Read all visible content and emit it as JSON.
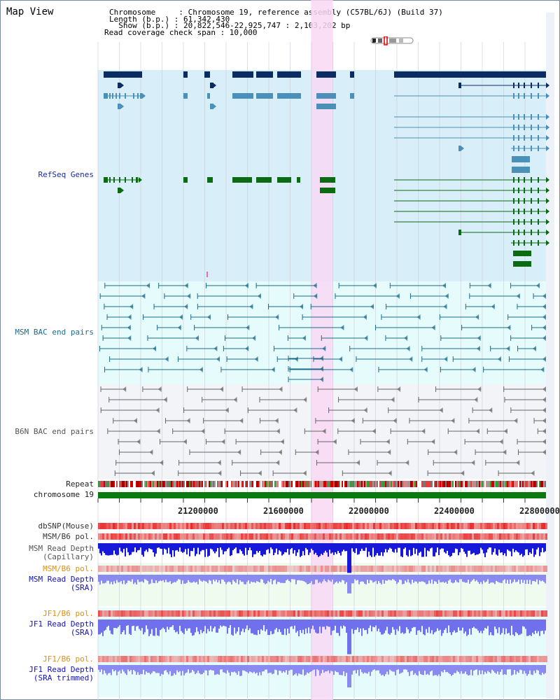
{
  "header": {
    "title": "Map View",
    "info_lines": [
      "Chromosome     : Chromosome 19, reference assembly (C57BL/6J) (Build 37)",
      "Length (b.p.) : 61,342,430",
      "  Show (b.p.) : 20,822,546-22,925,747 : 2,103,202 bp",
      "Read coverage check span : 10,000"
    ]
  },
  "tracks": {
    "refseq": {
      "label": "RefSeq Genes",
      "color_main": "#0b2c63",
      "color_mid": "#4a90b8",
      "color_green": "#0a6b12",
      "bg": "#d8eef8"
    },
    "msm_bac": {
      "label": "MSM BAC end pairs",
      "color": "#1c6b8a",
      "bg": "#e6fbfb"
    },
    "b6n_bac": {
      "label": "B6N BAC end pairs",
      "color": "#666666",
      "bg": "#f3f4f8"
    },
    "repeat": {
      "label": "Repeat"
    },
    "chromosome": {
      "label": "chromosome 19",
      "color": "#0a7a10"
    },
    "dbsnp": {
      "label": "dbSNP(Mouse)",
      "color": "#333333"
    },
    "msm_b6_pol_1": {
      "label": "MSM/B6 pol.",
      "color": "#333333"
    },
    "msm_depth_cap": {
      "label": "MSM Read Depth\n(Capillary)",
      "color": "#555555"
    },
    "msm_b6_pol_2": {
      "label": "MSM/B6 pol.",
      "color": "#e0900a"
    },
    "msm_depth_sra": {
      "label": "MSM Read Depth\n(SRA)",
      "color": "#1010c0"
    },
    "jf1_b6_pol_1": {
      "label": "JF1/B6 pol.",
      "color": "#e0900a"
    },
    "jf1_depth_sra": {
      "label": "JF1 Read Depth\n(SRA)",
      "color": "#1010c0"
    },
    "jf1_b6_pol_2": {
      "label": "JF1/B6 pol.",
      "color": "#e0900a"
    },
    "jf1_depth_trim": {
      "label": "JF1 Read Depth\n(SRA trimmed)",
      "color": "#1010c0"
    }
  },
  "axis": {
    "ticks": [
      "21200000",
      "21600000",
      "22000000",
      "22400000",
      "22800000"
    ],
    "start": 20822546,
    "end": 22925747
  },
  "highlight": {
    "start": 21822546,
    "end": 21925747,
    "color": "#f8d8f4"
  }
}
